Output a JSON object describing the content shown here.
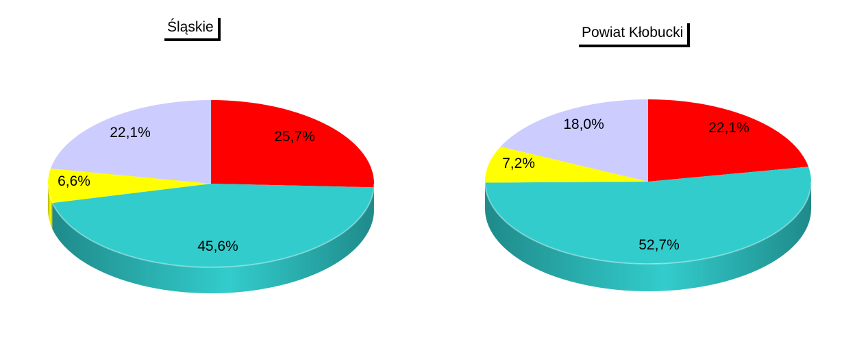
{
  "chart_data": [
    {
      "type": "pie",
      "title": "Śląskie",
      "slices": [
        {
          "value": 25.7,
          "label": "25,7%",
          "color": "#ff0000",
          "side_color": "#b30000"
        },
        {
          "value": 45.6,
          "label": "45,6%",
          "color": "#33cccc",
          "side_color": "#1f8a8a"
        },
        {
          "value": 6.6,
          "label": "6,6%",
          "color": "#ffff00",
          "side_color": "#b3b300"
        },
        {
          "value": 22.1,
          "label": "22,1%",
          "color": "#ccccff",
          "side_color": "#8f8fc2"
        }
      ]
    },
    {
      "type": "pie",
      "title": "Powiat Kłobucki",
      "slices": [
        {
          "value": 22.1,
          "label": "22,1%",
          "color": "#ff0000",
          "side_color": "#b30000"
        },
        {
          "value": 52.7,
          "label": "52,7%",
          "color": "#33cccc",
          "side_color": "#1f8a8a"
        },
        {
          "value": 7.2,
          "label": "7,2%",
          "color": "#ffff00",
          "side_color": "#b3b300"
        },
        {
          "value": 18.0,
          "label": "18,0%",
          "color": "#ccccff",
          "side_color": "#8f8fc2"
        }
      ]
    }
  ]
}
